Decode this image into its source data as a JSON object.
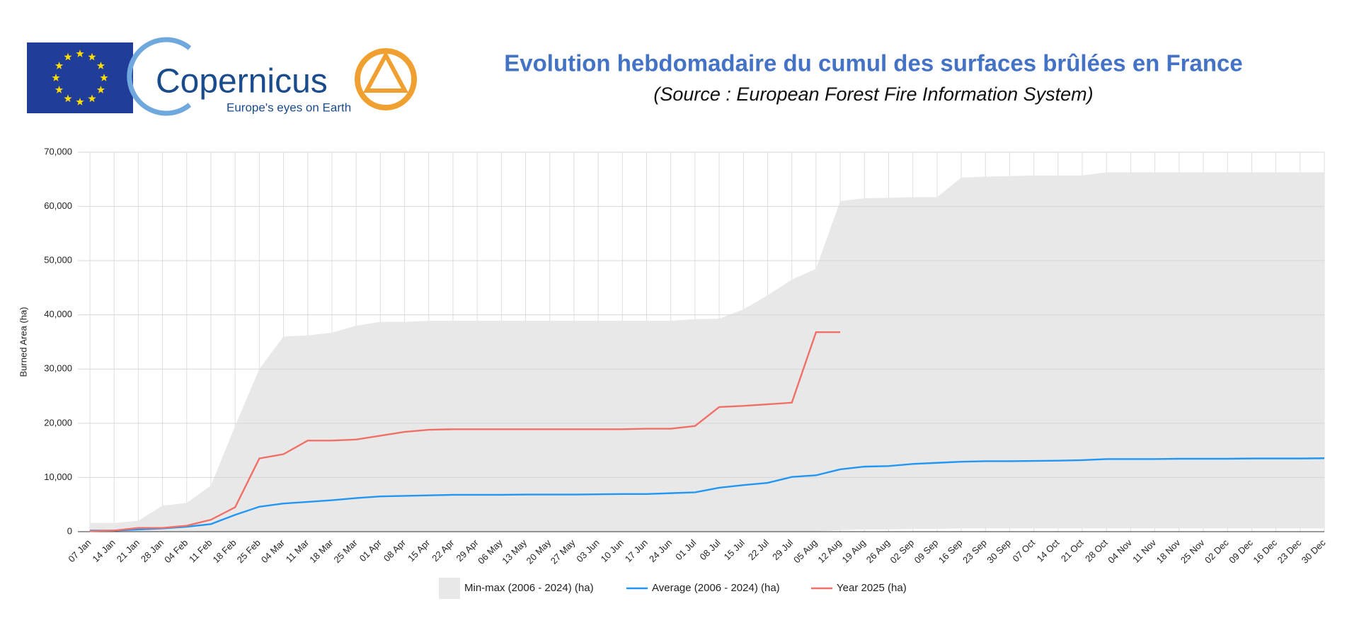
{
  "header": {
    "logo_text": "Copernicus",
    "tagline": "Europe's eyes on Earth"
  },
  "chart_data": {
    "type": "line",
    "title": "Evolution hebdomadaire du cumul des surfaces brûlées en France",
    "subtitle": "(Source : European Forest Fire Information System)",
    "y_label": "Burned Area (ha)",
    "categories": [
      "07 Jan",
      "14 Jan",
      "21 Jan",
      "28 Jan",
      "04 Feb",
      "11 Feb",
      "18 Feb",
      "25 Feb",
      "04 Mar",
      "11 Mar",
      "18 Mar",
      "25 Mar",
      "01 Apr",
      "08 Apr",
      "15 Apr",
      "22 Apr",
      "29 Apr",
      "06 May",
      "13 May",
      "20 May",
      "27 May",
      "03 Jun",
      "10 Jun",
      "17 Jun",
      "24 Jun",
      "01 Jul",
      "08 Jul",
      "15 Jul",
      "22 Jul",
      "29 Jul",
      "05 Aug",
      "12 Aug",
      "19 Aug",
      "26 Aug",
      "02 Sep",
      "09 Sep",
      "16 Sep",
      "23 Sep",
      "30 Sep",
      "07 Oct",
      "14 Oct",
      "21 Oct",
      "28 Oct",
      "04 Nov",
      "11 Nov",
      "18 Nov",
      "25 Nov",
      "02 Dec",
      "09 Dec",
      "16 Dec",
      "23 Dec",
      "30 Dec"
    ],
    "series": [
      {
        "name": "Min-max (2006 - 2024) (ha)",
        "kind": "band",
        "color": "#e8e8e8",
        "values": [
          1600,
          1600,
          2000,
          4800,
          5300,
          8500,
          19500,
          30000,
          36000,
          36200,
          36700,
          38000,
          38700,
          38700,
          38900,
          38900,
          38900,
          38900,
          38900,
          38900,
          38900,
          38900,
          38900,
          38900,
          38900,
          39200,
          39300,
          41000,
          43600,
          46500,
          48500,
          61000,
          61500,
          61600,
          61700,
          61700,
          65300,
          65500,
          65600,
          65700,
          65700,
          65700,
          66300,
          66300,
          66300,
          66300,
          66300,
          66300,
          66300,
          66300,
          66300,
          66300
        ],
        "lower": [
          0,
          0,
          0,
          0,
          0,
          0,
          0,
          0,
          0,
          0,
          0,
          0,
          0,
          0,
          0,
          0,
          0,
          0,
          0,
          0,
          0,
          0,
          0,
          0,
          0,
          0,
          0,
          0,
          0,
          0,
          50,
          300,
          400,
          400,
          500,
          500,
          600,
          600,
          600,
          600,
          600,
          600,
          600,
          600,
          600,
          600,
          600,
          600,
          600,
          600,
          600,
          600
        ]
      },
      {
        "name": "Average (2006 - 2024) (ha)",
        "kind": "line",
        "color": "#2196f3",
        "values": [
          200,
          200,
          400,
          600,
          900,
          1400,
          3100,
          4600,
          5200,
          5500,
          5800,
          6200,
          6500,
          6600,
          6700,
          6800,
          6800,
          6800,
          6850,
          6850,
          6850,
          6900,
          6950,
          6950,
          7100,
          7250,
          8100,
          8600,
          9000,
          10100,
          10400,
          11500,
          12000,
          12100,
          12500,
          12700,
          12900,
          13000,
          13000,
          13050,
          13100,
          13200,
          13400,
          13400,
          13400,
          13450,
          13450,
          13450,
          13500,
          13500,
          13500,
          13550
        ]
      },
      {
        "name": "Year 2025 (ha)",
        "kind": "line",
        "color": "#f07068",
        "values": [
          100,
          200,
          700,
          700,
          1100,
          2200,
          4500,
          13500,
          14300,
          16800,
          16800,
          17000,
          17700,
          18400,
          18800,
          18900,
          18900,
          18900,
          18900,
          18900,
          18900,
          18900,
          18900,
          19000,
          19000,
          19500,
          23000,
          23200,
          23500,
          23800,
          36800,
          36800,
          null,
          null,
          null,
          null,
          null,
          null,
          null,
          null,
          null,
          null,
          null,
          null,
          null,
          null,
          null,
          null,
          null,
          null,
          null,
          null
        ]
      }
    ],
    "ylim": [
      0,
      70000
    ],
    "yticks": [
      0,
      {
        "value": 10000,
        "label": "10,000"
      },
      {
        "value": 20000,
        "label": "20,000"
      },
      {
        "value": 30000,
        "label": "30,000"
      },
      {
        "value": 40000,
        "label": "40,000"
      },
      {
        "value": 50000,
        "label": "50,000"
      },
      {
        "value": 60000,
        "label": "60,000"
      },
      {
        "value": 70000,
        "label": "70,000"
      }
    ],
    "grid": true
  }
}
